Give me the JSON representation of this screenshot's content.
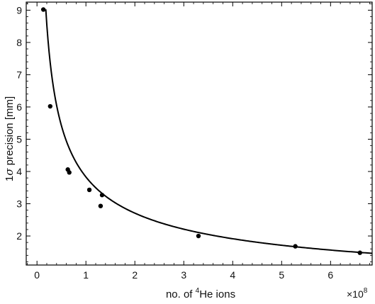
{
  "chart_data": {
    "type": "scatter",
    "title": "",
    "xlabel": {
      "prefix": "no. of ",
      "superscript": "4",
      "suffix": "He ions"
    },
    "ylabel": {
      "prefix": "1",
      "symbol": "σ",
      "suffix": " precision [mm]"
    },
    "x_multiplier": {
      "base": "×10",
      "exponent": "8"
    },
    "xlim": [
      -0.22,
      6.85
    ],
    "ylim": [
      1.1,
      9.25
    ],
    "x_ticks": [
      0,
      1,
      2,
      3,
      4,
      5,
      6
    ],
    "y_ticks": [
      2,
      3,
      4,
      5,
      6,
      7,
      8,
      9
    ],
    "grid": false,
    "legend": "none",
    "series": [
      {
        "type": "scatter",
        "x": [
          0.13,
          0.27,
          0.63,
          0.66,
          1.07,
          1.3,
          1.33,
          3.3,
          5.28,
          6.6
        ],
        "y": [
          9.02,
          6.02,
          4.06,
          3.97,
          3.43,
          2.93,
          3.27,
          2.0,
          1.68,
          1.48
        ],
        "color": "#000000"
      },
      {
        "type": "line",
        "function": "k / sqrt(x)",
        "k": 3.83,
        "x_range": [
          0.18,
          6.85
        ],
        "color": "#000000"
      }
    ]
  }
}
